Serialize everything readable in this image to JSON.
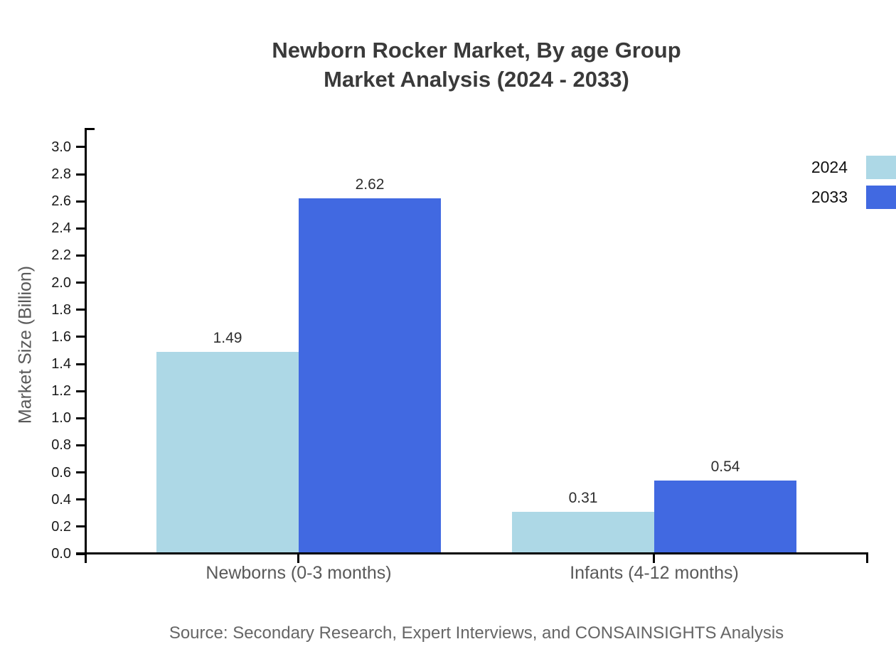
{
  "title": {
    "line1": "Newborn Rocker Market, By age Group",
    "line2": "Market Analysis (2024 - 2033)"
  },
  "legend": {
    "items": [
      {
        "label": "2024",
        "color": "#ADD8E6"
      },
      {
        "label": "2033",
        "color": "#4169E1"
      }
    ]
  },
  "source": "Source: Secondary Research, Expert Interviews, and CONSAINSIGHTS Analysis",
  "chart_data": {
    "type": "bar",
    "title": "Newborn Rocker Market, By age Group Market Analysis (2024 - 2033)",
    "categories": [
      "Newborns (0-3 months)",
      "Infants (4-12 months)"
    ],
    "series": [
      {
        "name": "2024",
        "color": "#ADD8E6",
        "values": [
          1.49,
          0.31
        ]
      },
      {
        "name": "2033",
        "color": "#4169E1",
        "values": [
          2.62,
          0.54
        ]
      }
    ],
    "xlabel": "",
    "ylabel": "Market Size (Billion)",
    "ylim": [
      0.0,
      3.0
    ],
    "ytick_step": 0.2,
    "grid": false,
    "legend_position": "top-right",
    "value_labels": true
  }
}
